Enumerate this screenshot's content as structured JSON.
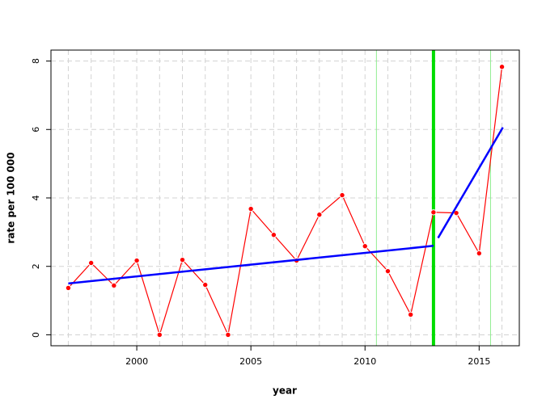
{
  "chart_data": {
    "type": "line",
    "x_label": "year",
    "y_label": "rate per 100 000",
    "x": [
      1997,
      1998,
      1999,
      2000,
      2001,
      2002,
      2003,
      2004,
      2005,
      2006,
      2007,
      2008,
      2009,
      2010,
      2011,
      2012,
      2013,
      2014,
      2015,
      2016
    ],
    "series": [
      {
        "color": "#ff0000",
        "values": [
          1.37,
          2.1,
          1.44,
          2.17,
          0,
          2.19,
          1.46,
          0,
          3.68,
          2.92,
          2.17,
          3.51,
          4.08,
          2.59,
          1.86,
          0.59,
          3.58,
          3.56,
          2.38,
          7.83
        ]
      }
    ],
    "trends": [
      {
        "color": "#0000ff",
        "x": [
          1997,
          2013
        ],
        "values": [
          1.5,
          2.6
        ]
      },
      {
        "color": "#0000ff",
        "x": [
          2013.2,
          2016.04
        ],
        "values": [
          2.83,
          6.06
        ]
      }
    ],
    "vlines": [
      {
        "x": 2010.5,
        "color": "#90ee90",
        "bold": false
      },
      {
        "x": 2013,
        "color": "#00dd00",
        "bold": true
      },
      {
        "x": 2015.5,
        "color": "#90ee90",
        "bold": false
      }
    ],
    "xlim": [
      1996.24,
      2016.76
    ],
    "xticks": [
      2000,
      2005,
      2010,
      2015
    ],
    "ylim": [
      -0.32,
      8.32
    ],
    "yticks": [
      0,
      2,
      4,
      6,
      8
    ],
    "grid": true
  }
}
